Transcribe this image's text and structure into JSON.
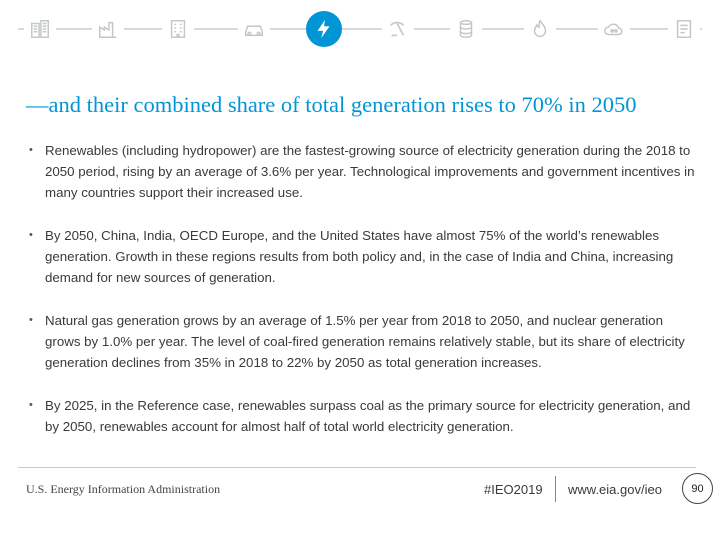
{
  "colors": {
    "accent": "#0096d6",
    "icon_gray": "#c4c7ca",
    "text": "#3a3a3a"
  },
  "icon_bar": {
    "icons": [
      "buildings-icon",
      "factory-icon",
      "office-building-icon",
      "car-icon",
      "electricity-bolt-icon",
      "coal-mining-icon",
      "oil-barrel-icon",
      "natural-gas-flame-icon",
      "nuclear-co2-icon",
      "report-document-icon"
    ],
    "active_icon": "electricity-bolt-icon"
  },
  "slide": {
    "title": "—and their combined share of total generation rises to 70% in 2050",
    "bullets": [
      "Renewables (including hydropower) are the fastest-growing source of electricity generation during the 2018 to 2050 period, rising by an average of 3.6% per year.  Technological improvements and government incentives in many countries support their increased use.",
      "By 2050, China, India, OECD Europe, and the United States have almost 75% of the world’s renewables generation. Growth in these regions results from both policy and, in the case of India and China, increasing demand for new sources of generation.",
      "Natural gas generation grows by an average of 1.5% per year from 2018 to 2050, and nuclear generation grows by 1.0% per year. The level of coal-fired generation remains relatively stable, but its share of electricity generation declines from 35% in 2018 to 22% by 2050 as total generation increases.",
      "By 2025, in the Reference case, renewables surpass coal as the primary source for electricity generation, and by 2050, renewables account for almost half of total world electricity generation."
    ]
  },
  "footer": {
    "organization": "U.S. Energy Information Administration",
    "hashtag": "#IEO2019",
    "url": "www.eia.gov/ieo",
    "page_number": "90"
  }
}
